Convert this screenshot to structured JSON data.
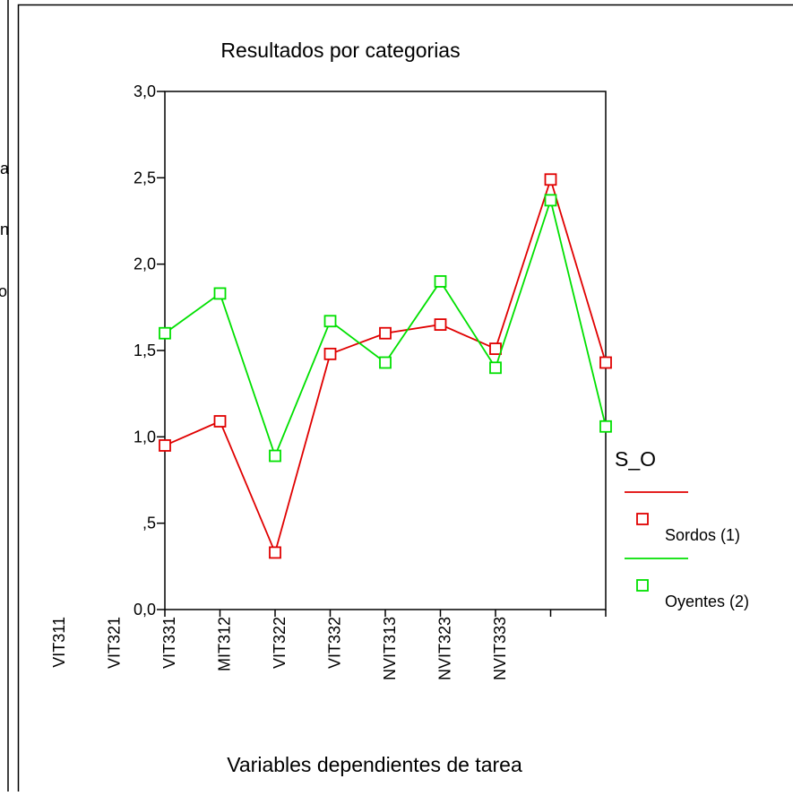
{
  "left_panel": {
    "fragments": [
      "a",
      "n",
      "o"
    ]
  },
  "chart_data": {
    "type": "line",
    "title": "Resultados por categorias",
    "x_label": "Variables dependientes de tarea",
    "categories": [
      "VIT311",
      "VIT321",
      "VIT331",
      "MIT312",
      "VIT322",
      "VIT332",
      "NVIT313",
      "NVIT323",
      "NVIT333"
    ],
    "legend_title": "S_O",
    "series": [
      {
        "name": "Sordos (1)",
        "color": "#e00000",
        "values": [
          0.95,
          1.09,
          0.33,
          1.48,
          1.6,
          1.65,
          1.51,
          2.49,
          1.43
        ]
      },
      {
        "name": "Oyentes (2)",
        "color": "#00e000",
        "values": [
          1.6,
          1.83,
          0.89,
          1.67,
          1.43,
          1.9,
          1.4,
          2.37,
          1.06
        ]
      }
    ],
    "ylim": [
      0,
      3
    ],
    "yticks": [
      {
        "value": 0,
        "label": "0,0"
      },
      {
        "value": 0.5,
        "label": ",5"
      },
      {
        "value": 1,
        "label": "1,0"
      },
      {
        "value": 1.5,
        "label": "1,5"
      },
      {
        "value": 2,
        "label": "2,0"
      },
      {
        "value": 2.5,
        "label": "2,5"
      },
      {
        "value": 3,
        "label": "3,0"
      }
    ],
    "legend_position": "right",
    "grid": false
  }
}
